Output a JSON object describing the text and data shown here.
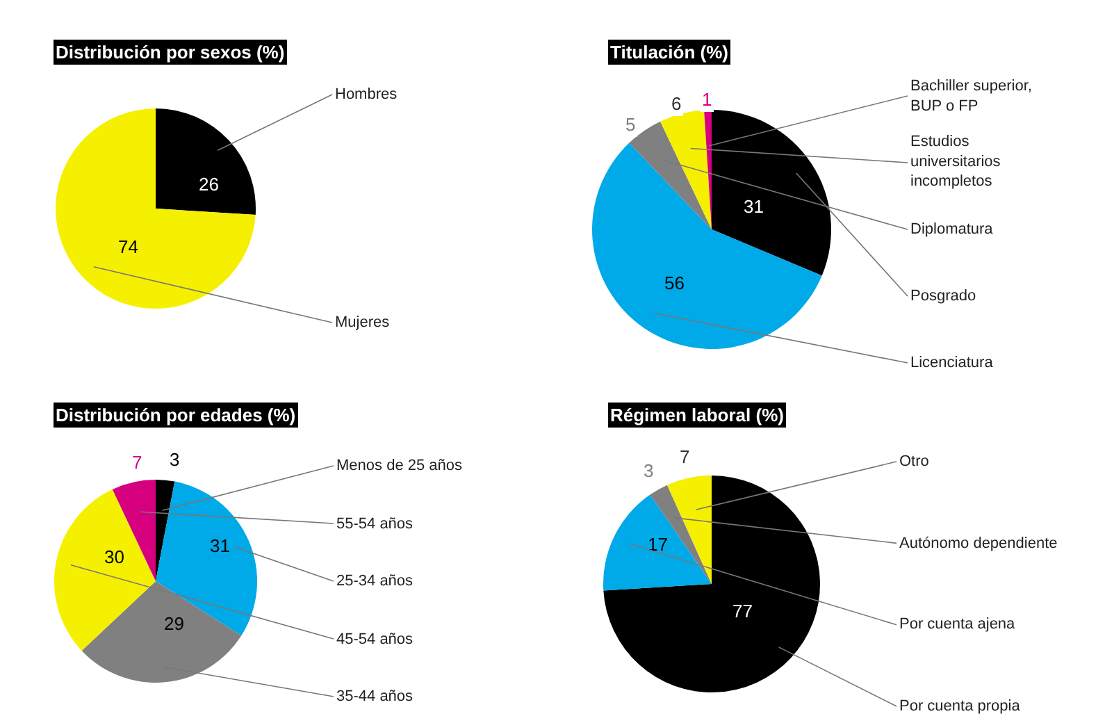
{
  "chart_data": [
    {
      "type": "pie",
      "title": "Distribución por sexos (%)",
      "categories": [
        "Hombres",
        "Mujeres"
      ],
      "values": [
        26,
        74
      ],
      "colors": [
        "#000000",
        "#f5f000"
      ],
      "data_labels": true
    },
    {
      "type": "pie",
      "title": "Titulación (%)",
      "categories": [
        "Posgrado",
        "Licenciatura",
        "Diplomatura",
        "Estudios universitarios incompletos",
        "Bachiller superior, BUP o FP"
      ],
      "values": [
        31,
        56,
        5,
        6,
        1
      ],
      "colors": [
        "#000000",
        "#00a9e8",
        "#808080",
        "#f5f000",
        "#d6007e"
      ],
      "data_labels": true
    },
    {
      "type": "pie",
      "title": "Distribución por edades (%)",
      "categories": [
        "Menos de 25 años",
        "25-34 años",
        "35-44 años",
        "45-54 años",
        "55-54 años"
      ],
      "values": [
        3,
        31,
        29,
        30,
        7
      ],
      "colors": [
        "#000000",
        "#00a9e8",
        "#808080",
        "#f5f000",
        "#d6007e"
      ],
      "data_labels": true
    },
    {
      "type": "pie",
      "title": "Régimen laboral (%)",
      "categories": [
        "Por cuenta propia",
        "Por cuenta ajena",
        "Autónomo dependiente",
        "Otro"
      ],
      "values": [
        77,
        17,
        3,
        7
      ],
      "colors": [
        "#000000",
        "#00a9e8",
        "#808080",
        "#f5f000"
      ],
      "data_labels": true
    }
  ]
}
